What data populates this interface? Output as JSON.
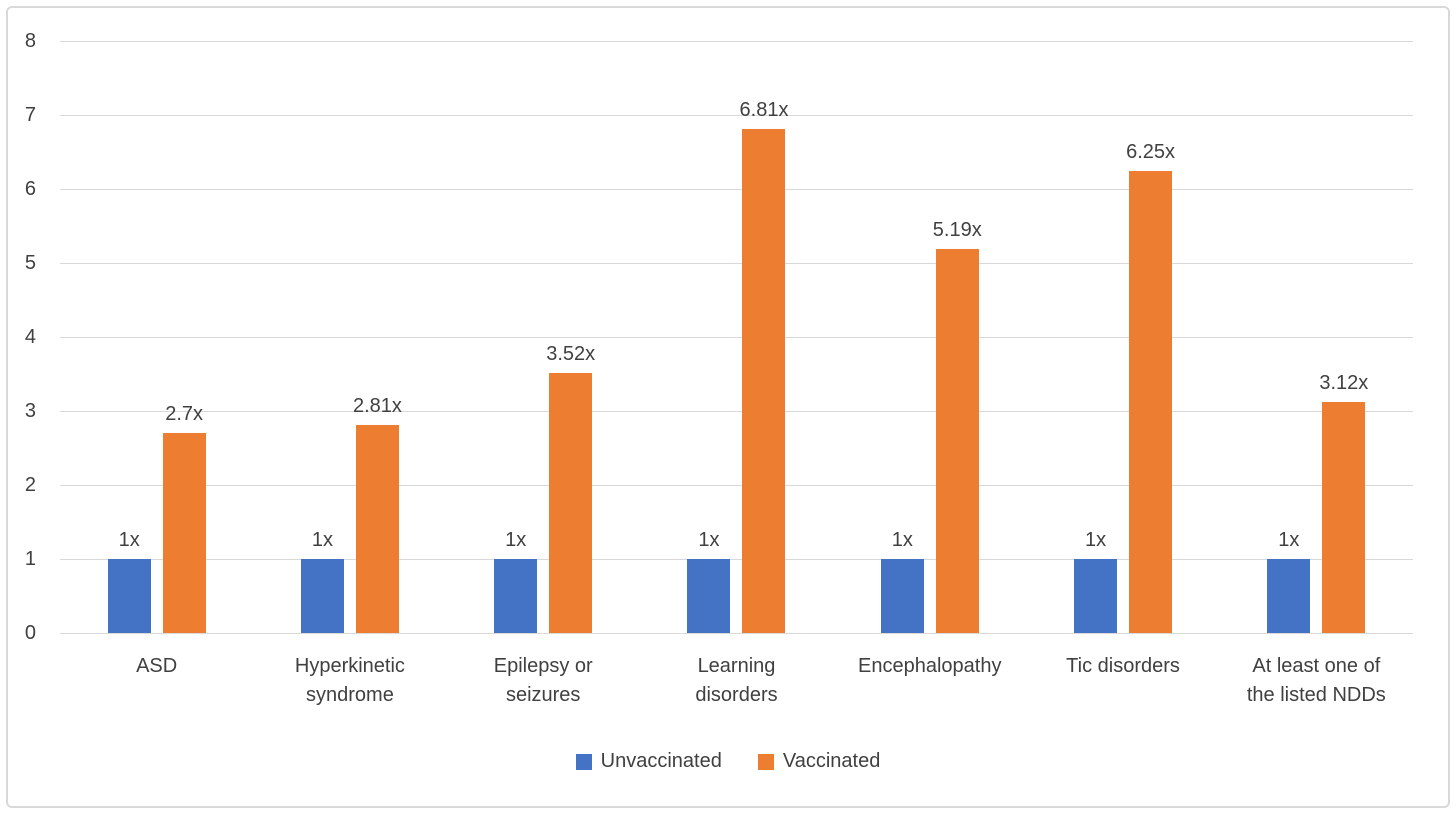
{
  "chart_data": {
    "type": "bar",
    "title": "",
    "xlabel": "",
    "ylabel": "",
    "categories": [
      "ASD",
      "Hyperkinetic syndrome",
      "Epilepsy or seizures",
      "Learning disorders",
      "Encephalopathy",
      "Tic disorders",
      "At least one of the listed NDDs"
    ],
    "series": [
      {
        "name": "Unvaccinated",
        "color": "#4472C4",
        "values": [
          1,
          1,
          1,
          1,
          1,
          1,
          1
        ],
        "data_labels": [
          "1x",
          "1x",
          "1x",
          "1x",
          "1x",
          "1x",
          "1x"
        ]
      },
      {
        "name": "Vaccinated",
        "color": "#ED7D31",
        "values": [
          2.7,
          2.81,
          3.52,
          6.81,
          5.19,
          6.25,
          3.12
        ],
        "data_labels": [
          "2.7x",
          "2.81x",
          "3.52x",
          "6.81x",
          "5.19x",
          "6.25x",
          "3.12x"
        ]
      }
    ],
    "ylim": [
      0,
      8
    ],
    "yticks": [
      "0",
      "1",
      "2",
      "3",
      "4",
      "5",
      "6",
      "7",
      "8"
    ],
    "grid": true,
    "legend_position": "bottom"
  },
  "colors": {
    "unvaccinated": "#4472C4",
    "vaccinated": "#ED7D31",
    "gridline": "#D9D9D9",
    "border": "#D9D9D9",
    "text": "#404040",
    "background": "#FFFFFF"
  }
}
